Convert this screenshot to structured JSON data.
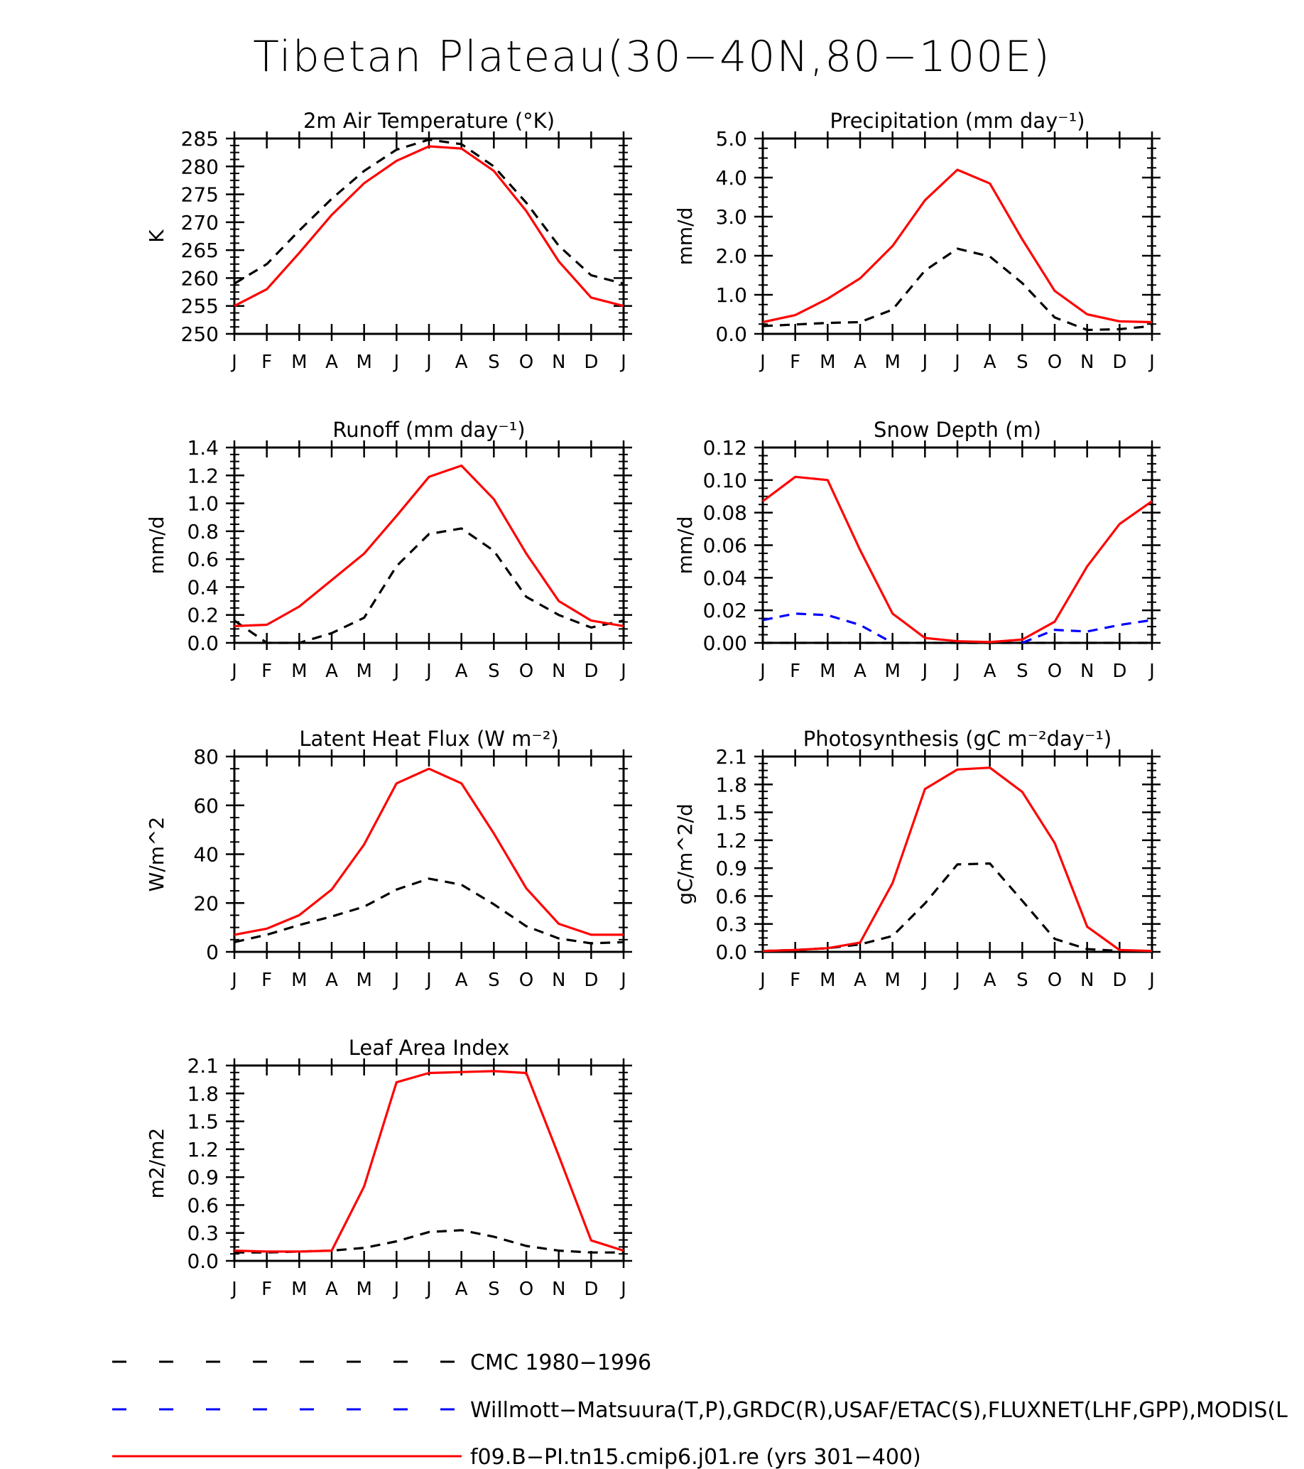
{
  "figure": {
    "title": "Tibetan Plateau(30−40N,80−100E)"
  },
  "colors": {
    "obs": "#000000",
    "obs2": "#0000ff",
    "model": "#ff0000"
  },
  "legend": [
    {
      "label": "CMC 1980−1996",
      "color": "#000000",
      "style": "dashed"
    },
    {
      "label": "Willmott−Matsuura(T,P),GRDC(R),USAF/ETAC(S),FLUXNET(LHF,GPP),MODIS(L",
      "color": "#0000ff",
      "style": "dashed"
    },
    {
      "label": "f09.B−PI.tn15.cmip6.j01.re (yrs 301−400)",
      "color": "#ff0000",
      "style": "solid"
    }
  ],
  "chart_data": [
    {
      "type": "line",
      "title": "2m Air Temperature (°K)",
      "ylabel": "K",
      "ylim": [
        250,
        285
      ],
      "yticks": [
        "250",
        "255",
        "260",
        "265",
        "270",
        "275",
        "280",
        "285"
      ],
      "categories": [
        "J",
        "F",
        "M",
        "A",
        "M",
        "J",
        "J",
        "A",
        "S",
        "O",
        "N",
        "D",
        "J"
      ],
      "series": [
        {
          "key": "model",
          "values": [
            255,
            258,
            264.5,
            271.3,
            277,
            281,
            283.6,
            283.2,
            279.2,
            272,
            263,
            256.5,
            255
          ]
        },
        {
          "key": "obs",
          "values": [
            259,
            262.5,
            268.5,
            274.2,
            279.2,
            283,
            284.8,
            284,
            280,
            273.5,
            265.8,
            260.5,
            259
          ]
        }
      ]
    },
    {
      "type": "line",
      "title": "Precipitation (mm day⁻¹)",
      "ylabel": "mm/d",
      "ylim": [
        0,
        5
      ],
      "yticks": [
        "0.0",
        "1.0",
        "2.0",
        "3.0",
        "4.0",
        "5.0"
      ],
      "categories": [
        "J",
        "F",
        "M",
        "A",
        "M",
        "J",
        "J",
        "A",
        "S",
        "O",
        "N",
        "D",
        "J"
      ],
      "series": [
        {
          "key": "model",
          "values": [
            0.3,
            0.48,
            0.9,
            1.42,
            2.25,
            3.42,
            4.2,
            3.85,
            2.42,
            1.1,
            0.5,
            0.32,
            0.3
          ]
        },
        {
          "key": "obs",
          "values": [
            0.2,
            0.24,
            0.28,
            0.3,
            0.62,
            1.62,
            2.18,
            1.98,
            1.3,
            0.42,
            0.1,
            0.12,
            0.2
          ]
        }
      ]
    },
    {
      "type": "line",
      "title": "Runoff (mm day⁻¹)",
      "ylabel": "mm/d",
      "ylim": [
        0,
        1.4
      ],
      "yticks": [
        "0.0",
        "0.2",
        "0.4",
        "0.6",
        "0.8",
        "1.0",
        "1.2",
        "1.4"
      ],
      "categories": [
        "J",
        "F",
        "M",
        "A",
        "M",
        "J",
        "J",
        "A",
        "S",
        "O",
        "N",
        "D",
        "J"
      ],
      "series": [
        {
          "key": "model",
          "values": [
            0.12,
            0.13,
            0.26,
            0.45,
            0.64,
            0.91,
            1.19,
            1.27,
            1.03,
            0.64,
            0.3,
            0.16,
            0.12
          ]
        },
        {
          "key": "obs",
          "values": [
            0.16,
            0.0,
            0.0,
            0.07,
            0.18,
            0.55,
            0.78,
            0.82,
            0.66,
            0.33,
            0.2,
            0.11,
            0.16
          ]
        }
      ]
    },
    {
      "type": "line",
      "title": "Snow Depth (m)",
      "ylabel": "mm/d",
      "ylim": [
        0,
        0.12
      ],
      "yticks": [
        "0.00",
        "0.02",
        "0.04",
        "0.06",
        "0.08",
        "0.10",
        "0.12"
      ],
      "categories": [
        "J",
        "F",
        "M",
        "A",
        "M",
        "J",
        "J",
        "A",
        "S",
        "O",
        "N",
        "D",
        "J"
      ],
      "series": [
        {
          "key": "model",
          "values": [
            0.087,
            0.102,
            0.1,
            0.057,
            0.018,
            0.003,
            0.001,
            0.0005,
            0.002,
            0.013,
            0.047,
            0.073,
            0.087
          ]
        },
        {
          "key": "obs2",
          "values": [
            0.014,
            0.018,
            0.017,
            0.011,
            0.0,
            null,
            null,
            null,
            0.0,
            0.008,
            0.007,
            0.011,
            0.014
          ]
        },
        {
          "key": "obs",
          "values": [
            0,
            0,
            0,
            0,
            0,
            0,
            0,
            0,
            0,
            0,
            0,
            0,
            0
          ]
        }
      ]
    },
    {
      "type": "line",
      "title": "Latent Heat Flux (W m⁻²)",
      "ylabel": "W/m^2",
      "ylim": [
        0,
        80
      ],
      "yticks": [
        "0",
        "20",
        "40",
        "60",
        "80"
      ],
      "categories": [
        "J",
        "F",
        "M",
        "A",
        "M",
        "J",
        "J",
        "A",
        "S",
        "O",
        "N",
        "D",
        "J"
      ],
      "series": [
        {
          "key": "model",
          "values": [
            7,
            9.5,
            15,
            25.5,
            44,
            69,
            75,
            69,
            48.5,
            26,
            11.5,
            7,
            7
          ]
        },
        {
          "key": "obs",
          "values": [
            4,
            7,
            11,
            14.5,
            18.5,
            25.5,
            30,
            27.5,
            19.5,
            10.5,
            5.5,
            3.5,
            4
          ]
        }
      ]
    },
    {
      "type": "line",
      "title": "Photosynthesis (gC m⁻²day⁻¹)",
      "ylabel": "gC/m^2/d",
      "ylim": [
        0,
        2.1
      ],
      "yticks": [
        "0.0",
        "0.3",
        "0.6",
        "0.9",
        "1.2",
        "1.5",
        "1.8",
        "2.1"
      ],
      "categories": [
        "J",
        "F",
        "M",
        "A",
        "M",
        "J",
        "J",
        "A",
        "S",
        "O",
        "N",
        "D",
        "J"
      ],
      "series": [
        {
          "key": "model",
          "values": [
            0.01,
            0.02,
            0.04,
            0.1,
            0.74,
            1.75,
            1.96,
            1.98,
            1.72,
            1.17,
            0.27,
            0.02,
            0.01
          ]
        },
        {
          "key": "obs",
          "values": [
            0.01,
            0.02,
            0.04,
            0.08,
            0.17,
            0.52,
            0.94,
            0.95,
            0.55,
            0.14,
            0.03,
            0.01,
            0.01
          ]
        }
      ]
    },
    {
      "type": "line",
      "title": "Leaf Area Index",
      "ylabel": "m2/m2",
      "ylim": [
        0,
        2.1
      ],
      "yticks": [
        "0.0",
        "0.3",
        "0.6",
        "0.9",
        "1.2",
        "1.5",
        "1.8",
        "2.1"
      ],
      "categories": [
        "J",
        "F",
        "M",
        "A",
        "M",
        "J",
        "J",
        "A",
        "S",
        "O",
        "N",
        "D",
        "J"
      ],
      "series": [
        {
          "key": "model",
          "values": [
            0.11,
            0.1,
            0.1,
            0.11,
            0.8,
            1.92,
            2.02,
            2.03,
            2.04,
            2.02,
            1.13,
            0.22,
            0.11
          ]
        },
        {
          "key": "obs",
          "values": [
            0.09,
            0.09,
            0.1,
            0.11,
            0.14,
            0.21,
            0.31,
            0.33,
            0.26,
            0.16,
            0.11,
            0.09,
            0.09
          ]
        }
      ]
    }
  ]
}
